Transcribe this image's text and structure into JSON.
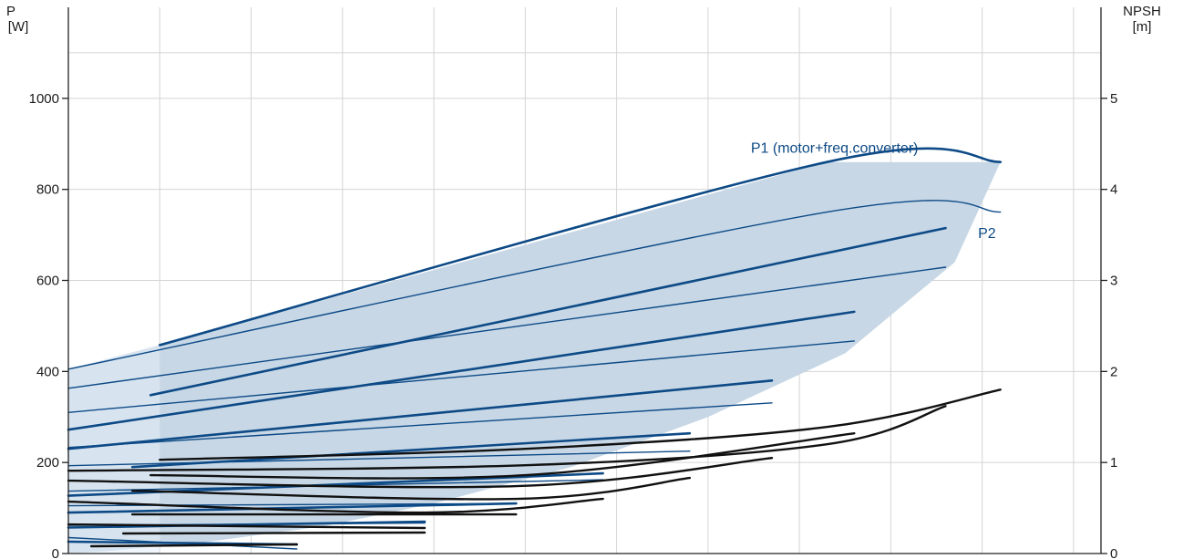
{
  "chart_data": {
    "type": "line",
    "title": "",
    "left_axis": {
      "label_line1": "P",
      "label_line2": "[W]",
      "ylim": [
        0,
        1200
      ],
      "ticks": [
        0,
        200,
        400,
        600,
        800,
        1000
      ]
    },
    "right_axis": {
      "label_line1": "NPSH",
      "label_line2": "[m]",
      "ylim": [
        0,
        6
      ],
      "ticks": [
        0,
        1,
        2,
        3,
        4,
        5
      ]
    },
    "xlim": [
      0,
      11.3
    ],
    "grid": true,
    "colors": {
      "power": "#0d4a86",
      "npsh": "#111111",
      "envelope": "#c7d7e6",
      "envelope_left": "#e3eef8"
    },
    "annotations": [
      {
        "text": "P1 (motor+freq.converter)",
        "x": 9.3,
        "y": 880
      },
      {
        "text": "P2",
        "x": 10.15,
        "y": 725
      }
    ],
    "envelope": {
      "x": [
        0,
        1,
        8.3,
        10.2,
        9.7,
        8.5,
        7,
        5.5,
        4,
        2.8,
        1.5,
        0.4,
        0
      ],
      "y": [
        405,
        458,
        860,
        860,
        640,
        440,
        300,
        190,
        110,
        60,
        25,
        5,
        0
      ]
    },
    "power_series": [
      {
        "group": "P1",
        "x": [
          1,
          8.3,
          10.2
        ],
        "y": [
          458,
          860,
          860
        ]
      },
      {
        "group": "P2",
        "x": [
          0,
          8.3,
          10.2
        ],
        "y": [
          405,
          750,
          750
        ]
      },
      {
        "group": "P1",
        "x": [
          0.9,
          9.6
        ],
        "y": [
          348,
          715
        ]
      },
      {
        "group": "P2",
        "x": [
          0,
          9.6
        ],
        "y": [
          363,
          629
        ]
      },
      {
        "group": "P1",
        "x": [
          0,
          8.6
        ],
        "y": [
          272,
          531
        ]
      },
      {
        "group": "P2",
        "x": [
          0,
          8.6
        ],
        "y": [
          310,
          467
        ]
      },
      {
        "group": "P1",
        "x": [
          0,
          7.7
        ],
        "y": [
          230,
          380
        ]
      },
      {
        "group": "P2",
        "x": [
          0,
          7.7
        ],
        "y": [
          233,
          331
        ]
      },
      {
        "group": "P1",
        "x": [
          0.7,
          6.8
        ],
        "y": [
          190,
          264
        ]
      },
      {
        "group": "P2",
        "x": [
          0,
          6.8
        ],
        "y": [
          193,
          225
        ]
      },
      {
        "group": "P1",
        "x": [
          0,
          5.85
        ],
        "y": [
          127,
          176
        ]
      },
      {
        "group": "P2",
        "x": [
          0,
          5.85
        ],
        "y": [
          137,
          162
        ]
      },
      {
        "group": "P1",
        "x": [
          0,
          4.9
        ],
        "y": [
          90,
          110
        ]
      },
      {
        "group": "P2",
        "x": [
          0,
          4.9
        ],
        "y": [
          105,
          110
        ]
      },
      {
        "group": "P1",
        "x": [
          0,
          3.9
        ],
        "y": [
          57,
          70
        ]
      },
      {
        "group": "P2",
        "x": [
          0,
          3.9
        ],
        "y": [
          62,
          67
        ]
      },
      {
        "group": "P1",
        "x": [
          0,
          2.5
        ],
        "y": [
          26,
          20
        ]
      },
      {
        "group": "P2",
        "x": [
          0,
          2.5
        ],
        "y": [
          35,
          10
        ]
      }
    ],
    "npsh_series": [
      {
        "x": [
          1,
          5,
          8.3,
          10.2
        ],
        "y": [
          1.03,
          1.15,
          1.39,
          1.8
        ]
      },
      {
        "x": [
          0,
          5,
          8.3,
          9.6
        ],
        "y": [
          0.91,
          0.97,
          1.2,
          1.62
        ]
      },
      {
        "x": [
          0.9,
          5,
          8.6
        ],
        "y": [
          0.86,
          0.86,
          1.32
        ]
      },
      {
        "x": [
          0,
          4.9,
          7.7
        ],
        "y": [
          0.8,
          0.74,
          1.05
        ]
      },
      {
        "x": [
          0.7,
          4.9,
          6.8
        ],
        "y": [
          0.69,
          0.6,
          0.83
        ]
      },
      {
        "x": [
          0,
          3.9,
          5.85
        ],
        "y": [
          0.57,
          0.45,
          0.6
        ]
      },
      {
        "x": [
          0.7,
          4.9
        ],
        "y": [
          0.43,
          0.43
        ]
      },
      {
        "x": [
          0,
          3.9
        ],
        "y": [
          0.32,
          0.28
        ]
      },
      {
        "x": [
          0.6,
          3.9
        ],
        "y": [
          0.22,
          0.23
        ]
      },
      {
        "x": [
          0.25,
          2.5
        ],
        "y": [
          0.08,
          0.1
        ]
      }
    ]
  }
}
